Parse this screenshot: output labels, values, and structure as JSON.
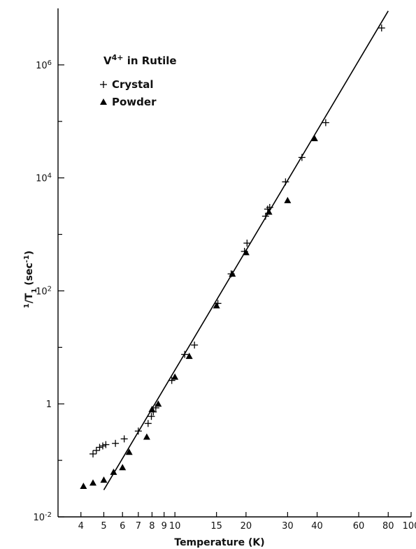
{
  "chart_data": {
    "type": "scatter",
    "scale": {
      "x": "log",
      "y": "log"
    },
    "xlabel": "Temperature (K)",
    "ylabel": "1/T1 (sec-1)",
    "ylabel_parts": {
      "num": "1",
      "den": "T",
      "den_sub": "1",
      "unit": "(sec",
      "unit_sup": "-1",
      "unit_close": ")"
    },
    "title_parts": {
      "base": "V",
      "sup": "4+",
      "rest": " in Rutile"
    },
    "xlim": [
      3.2,
      100
    ],
    "ylim": [
      0.01,
      10000000
    ],
    "x_ticks": [
      {
        "value": 4,
        "label": "4"
      },
      {
        "value": 5,
        "label": "5"
      },
      {
        "value": 6,
        "label": "6"
      },
      {
        "value": 7,
        "label": "7"
      },
      {
        "value": 8,
        "label": "8"
      },
      {
        "value": 9,
        "label": "9"
      },
      {
        "value": 10,
        "label": "10"
      },
      {
        "value": 15,
        "label": "15"
      },
      {
        "value": 20,
        "label": "20"
      },
      {
        "value": 30,
        "label": "30"
      },
      {
        "value": 40,
        "label": "40"
      },
      {
        "value": 60,
        "label": "60"
      },
      {
        "value": 80,
        "label": "80"
      },
      {
        "value": 100,
        "label": "100"
      }
    ],
    "y_major_ticks": [
      {
        "value": 0.01,
        "base": "10",
        "sup": "-2"
      },
      {
        "value": 1,
        "base": "1",
        "sup": ""
      },
      {
        "value": 100,
        "base": "10",
        "sup": "2"
      },
      {
        "value": 10000,
        "base": "10",
        "sup": "4"
      },
      {
        "value": 1000000,
        "base": "10",
        "sup": "6"
      }
    ],
    "y_minor_ticks": [
      0.1,
      10,
      1000,
      100000
    ],
    "legend": {
      "position": "top-left"
    },
    "series": [
      {
        "name": "Crystal",
        "marker": "plus",
        "points": [
          [
            4.5,
            0.13
          ],
          [
            4.65,
            0.15
          ],
          [
            4.8,
            0.17
          ],
          [
            4.95,
            0.18
          ],
          [
            5.1,
            0.19
          ],
          [
            5.6,
            0.2
          ],
          [
            6.1,
            0.24
          ],
          [
            7.0,
            0.33
          ],
          [
            7.7,
            0.45
          ],
          [
            7.95,
            0.6
          ],
          [
            8.1,
            0.72
          ],
          [
            8.3,
            0.85
          ],
          [
            9.7,
            2.6
          ],
          [
            11.0,
            7.5
          ],
          [
            12.1,
            11
          ],
          [
            15.2,
            60
          ],
          [
            17.3,
            200
          ],
          [
            19.7,
            500
          ],
          [
            20.2,
            700
          ],
          [
            24.2,
            2100
          ],
          [
            24.7,
            2800
          ],
          [
            25.2,
            3000
          ],
          [
            29.4,
            8500
          ],
          [
            34.5,
            23000
          ],
          [
            43.5,
            95000
          ],
          [
            75.0,
            4500000
          ]
        ]
      },
      {
        "name": "Powder",
        "marker": "triangle",
        "points": [
          [
            4.1,
            0.035
          ],
          [
            4.5,
            0.04
          ],
          [
            5.0,
            0.045
          ],
          [
            5.5,
            0.062
          ],
          [
            6.0,
            0.075
          ],
          [
            6.4,
            0.14
          ],
          [
            7.6,
            0.26
          ],
          [
            8.0,
            0.8
          ],
          [
            8.5,
            1.0
          ],
          [
            10.0,
            3.0
          ],
          [
            11.5,
            7.0
          ],
          [
            15.0,
            55
          ],
          [
            17.5,
            200
          ],
          [
            20.0,
            480
          ],
          [
            25.0,
            2500
          ],
          [
            30.0,
            4000
          ],
          [
            39.0,
            50000
          ]
        ]
      }
    ],
    "fit_line": {
      "from": [
        5.0,
        0.03
      ],
      "to": [
        80.0,
        9000000
      ]
    }
  }
}
